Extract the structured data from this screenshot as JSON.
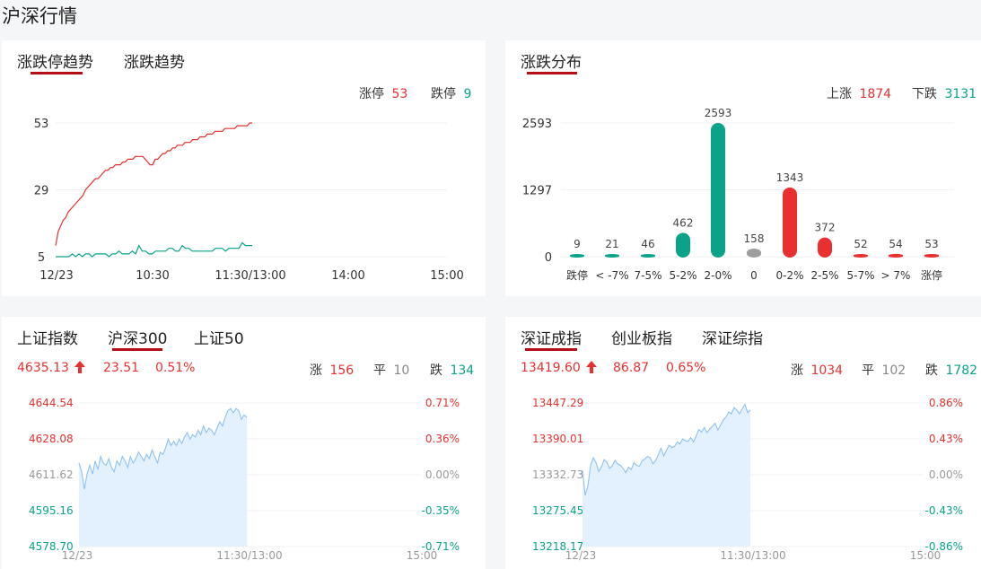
{
  "page_title": "沪深行情",
  "trend_panel": {
    "tabs": [
      "涨跌停趋势",
      "涨跌趋势"
    ],
    "active_tab": 0,
    "limit_up_label": "涨停",
    "limit_up_count": "53",
    "limit_down_label": "跌停",
    "limit_down_count": "9",
    "colors": {
      "up": "#e93030",
      "down": "#0aa38a"
    }
  },
  "dist_panel": {
    "tabs": [
      "涨跌分布"
    ],
    "up_label": "上涨",
    "up_count": "1874",
    "down_label": "下跌",
    "down_count": "3131"
  },
  "index_panel_left": {
    "tabs": [
      "上证指数",
      "沪深300",
      "上证50"
    ],
    "active_tab": 1,
    "price": "4635.13",
    "change": "23.51",
    "change_pct": "0.51%",
    "rise_label": "涨",
    "rise_count": "156",
    "flat_label": "平",
    "flat_count": "10",
    "fall_label": "跌",
    "fall_count": "134",
    "arrow_icon": "up-arrow-icon"
  },
  "index_panel_right": {
    "tabs": [
      "深证成指",
      "创业板指",
      "深证综指"
    ],
    "active_tab": 0,
    "price": "13419.60",
    "change": "86.87",
    "change_pct": "0.65%",
    "rise_label": "涨",
    "rise_count": "1034",
    "flat_label": "平",
    "flat_count": "102",
    "fall_label": "跌",
    "fall_count": "1782",
    "arrow_icon": "up-arrow-icon"
  },
  "chart_data": [
    {
      "type": "line",
      "x_ticks": [
        "12/23",
        "10:30",
        "11:30/13:00",
        "14:00",
        "15:00"
      ],
      "y_ticks": [
        "53",
        "29",
        "5"
      ],
      "ylim": [
        5,
        53
      ],
      "series": [
        {
          "name": "涨停",
          "color": "#e93030",
          "values": [
            9,
            14,
            16,
            18,
            19,
            21,
            22,
            23,
            24,
            25,
            26,
            27,
            29,
            30,
            31,
            32,
            33,
            33,
            34,
            35,
            36,
            36,
            37,
            37,
            38,
            38,
            38,
            39,
            39,
            40,
            40,
            40,
            41,
            41,
            41,
            41,
            40,
            39,
            38,
            38,
            40,
            40,
            41,
            42,
            42,
            43,
            43,
            44,
            44,
            45,
            45,
            45,
            46,
            46,
            46,
            47,
            47,
            47,
            48,
            48,
            48,
            49,
            49,
            49,
            50,
            50,
            50,
            50,
            51,
            51,
            51,
            51,
            51,
            52,
            52,
            52,
            52,
            52,
            53,
            53
          ]
        },
        {
          "name": "跌停",
          "color": "#0aa38a",
          "values": [
            5,
            5,
            5,
            5,
            5,
            6,
            5,
            6,
            5,
            6,
            6,
            5,
            6,
            6,
            6,
            6,
            5,
            6,
            6,
            7,
            6,
            6,
            6,
            7,
            6,
            9,
            7,
            7,
            6,
            6,
            7,
            7,
            7,
            7,
            8,
            8,
            7,
            7,
            9,
            8,
            8,
            7,
            7,
            7,
            7,
            7,
            7,
            7,
            8,
            8,
            8,
            7,
            8,
            8,
            8,
            8,
            10,
            9,
            9,
            9
          ]
        }
      ]
    },
    {
      "type": "bar",
      "categories": [
        "跌停",
        "< -7%",
        "7-5%",
        "5-2%",
        "2-0%",
        "0",
        "0-2%",
        "2-5%",
        "5-7%",
        "> 7%",
        "涨停"
      ],
      "values": [
        9,
        21,
        46,
        462,
        2593,
        158,
        1343,
        372,
        52,
        54,
        53
      ],
      "colors": [
        "#0aa38a",
        "#0aa38a",
        "#0aa38a",
        "#0aa38a",
        "#0aa38a",
        "#9e9e9e",
        "#e93030",
        "#e93030",
        "#e93030",
        "#e93030",
        "#e93030"
      ],
      "y_ticks": [
        "2593",
        "1297",
        "0"
      ],
      "ylim": [
        0,
        2593
      ]
    },
    {
      "type": "area",
      "x_ticks": [
        "12/23",
        "11:30/13:00",
        "15:00"
      ],
      "y_ticks_left": [
        "4644.54",
        "4628.08",
        "4611.62",
        "4595.16",
        "4578.70"
      ],
      "y_ticks_right": [
        "0.71%",
        "0.36%",
        "0.00%",
        "-0.35%",
        "-0.71%"
      ],
      "ylim": [
        4578.7,
        4644.54
      ],
      "values": [
        4617,
        4613,
        4605,
        4612,
        4616,
        4612,
        4618,
        4614,
        4620,
        4617,
        4616,
        4619,
        4615,
        4613,
        4618,
        4616,
        4620,
        4618,
        4615,
        4620,
        4617,
        4619,
        4622,
        4620,
        4618,
        4621,
        4619,
        4623,
        4620,
        4617,
        4622,
        4621,
        4624,
        4628,
        4625,
        4627,
        4625,
        4628,
        4626,
        4629,
        4631,
        4628,
        4630,
        4629,
        4632,
        4630,
        4634,
        4631,
        4633,
        4632,
        4630,
        4633,
        4636,
        4634,
        4638,
        4641,
        4642,
        4640,
        4642,
        4641,
        4637,
        4639,
        4638
      ]
    },
    {
      "type": "area",
      "x_ticks": [
        "12/23",
        "11:30/13:00",
        "15:00"
      ],
      "y_ticks_left": [
        "13447.29",
        "13390.01",
        "13332.73",
        "13275.45",
        "13218.17"
      ],
      "y_ticks_right": [
        "0.86%",
        "0.43%",
        "0.00%",
        "-0.43%",
        "-0.86%"
      ],
      "ylim": [
        13218.17,
        13447.29
      ],
      "values": [
        13340,
        13300,
        13315,
        13348,
        13360,
        13352,
        13338,
        13345,
        13357,
        13353,
        13343,
        13347,
        13356,
        13350,
        13348,
        13343,
        13336,
        13345,
        13341,
        13352,
        13348,
        13346,
        13355,
        13358,
        13362,
        13360,
        13350,
        13355,
        13365,
        13375,
        13363,
        13372,
        13380,
        13376,
        13378,
        13385,
        13382,
        13390,
        13387,
        13386,
        13392,
        13385,
        13395,
        13405,
        13401,
        13408,
        13400,
        13406,
        13410,
        13415,
        13404,
        13412,
        13420,
        13425,
        13433,
        13430,
        13440,
        13436,
        13430,
        13438,
        13445,
        13432,
        13436
      ]
    }
  ]
}
